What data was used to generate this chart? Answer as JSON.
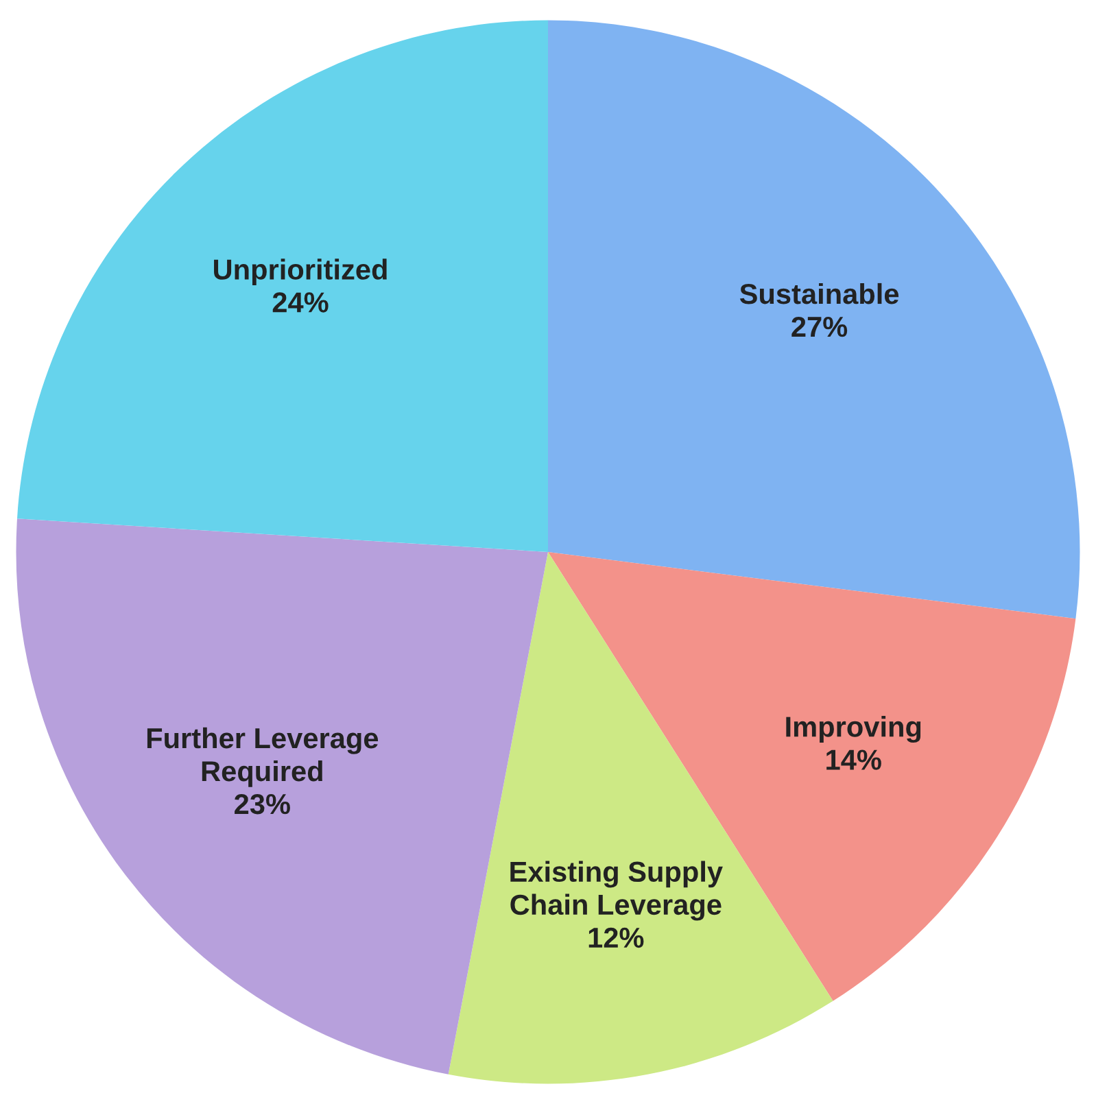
{
  "chart_data": {
    "type": "pie",
    "categories": [
      "Sustainable",
      "Improving",
      "Existing Supply\nChain Leverage",
      "Further Leverage\nRequired",
      "Unprioritized"
    ],
    "values": [
      27,
      14,
      12,
      23,
      24
    ],
    "colors": [
      "#7fb3f2",
      "#f3928a",
      "#cde985",
      "#b7a0dc",
      "#66d3ec"
    ],
    "value_labels": [
      "27%",
      "14%",
      "12%",
      "23%",
      "24%"
    ]
  }
}
